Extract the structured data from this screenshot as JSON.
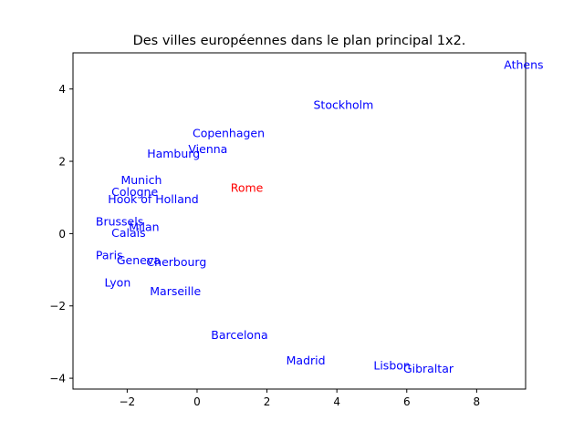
{
  "chart_data": {
    "type": "scatter",
    "title": "Des villes européennes dans le plan principal 1x2.",
    "xlabel": "",
    "ylabel": "",
    "xlim": [
      -3.55,
      9.4
    ],
    "ylim": [
      -4.3,
      5.0
    ],
    "x_ticks": [
      -2,
      0,
      2,
      4,
      6,
      8
    ],
    "y_ticks": [
      -4,
      -2,
      0,
      2,
      4
    ],
    "x_tick_labels": [
      "−2",
      "0",
      "2",
      "4",
      "6",
      "8"
    ],
    "y_tick_labels": [
      "−4",
      "−2",
      "0",
      "2",
      "4"
    ],
    "grid": false,
    "legend": "none",
    "colors": {
      "default": "#0000ff",
      "highlight": "#ff0000",
      "axis": "#000000"
    },
    "points": [
      {
        "label": "Athens",
        "x": 8.78,
        "y": 4.67,
        "color": "#0000ff"
      },
      {
        "label": "Stockholm",
        "x": 3.33,
        "y": 3.56,
        "color": "#0000ff"
      },
      {
        "label": "Copenhagen",
        "x": -0.13,
        "y": 2.78,
        "color": "#0000ff"
      },
      {
        "label": "Vienna",
        "x": -0.25,
        "y": 2.34,
        "color": "#0000ff"
      },
      {
        "label": "Hamburg",
        "x": -1.43,
        "y": 2.21,
        "color": "#0000ff"
      },
      {
        "label": "Munich",
        "x": -2.18,
        "y": 1.49,
        "color": "#0000ff"
      },
      {
        "label": "Rome",
        "x": 0.96,
        "y": 1.27,
        "color": "#ff0000"
      },
      {
        "label": "Cologne",
        "x": -2.45,
        "y": 1.16,
        "color": "#0000ff"
      },
      {
        "label": "Hook of Holland",
        "x": -2.55,
        "y": 0.95,
        "color": "#0000ff"
      },
      {
        "label": "Brussels",
        "x": -2.9,
        "y": 0.34,
        "color": "#0000ff"
      },
      {
        "label": "Milan",
        "x": -1.95,
        "y": 0.18,
        "color": "#0000ff"
      },
      {
        "label": "Calais",
        "x": -2.45,
        "y": 0.02,
        "color": "#0000ff"
      },
      {
        "label": "Paris",
        "x": -2.9,
        "y": -0.6,
        "color": "#0000ff"
      },
      {
        "label": "Geneva",
        "x": -2.3,
        "y": -0.74,
        "color": "#0000ff"
      },
      {
        "label": "Cherbourg",
        "x": -1.45,
        "y": -0.78,
        "color": "#0000ff"
      },
      {
        "label": "Lyon",
        "x": -2.65,
        "y": -1.35,
        "color": "#0000ff"
      },
      {
        "label": "Marseille",
        "x": -1.35,
        "y": -1.59,
        "color": "#0000ff"
      },
      {
        "label": "Barcelona",
        "x": 0.4,
        "y": -2.8,
        "color": "#0000ff"
      },
      {
        "label": "Madrid",
        "x": 2.55,
        "y": -3.51,
        "color": "#0000ff"
      },
      {
        "label": "Lisbon",
        "x": 5.05,
        "y": -3.64,
        "color": "#0000ff"
      },
      {
        "label": "Gibraltar",
        "x": 5.9,
        "y": -3.73,
        "color": "#0000ff"
      }
    ]
  }
}
